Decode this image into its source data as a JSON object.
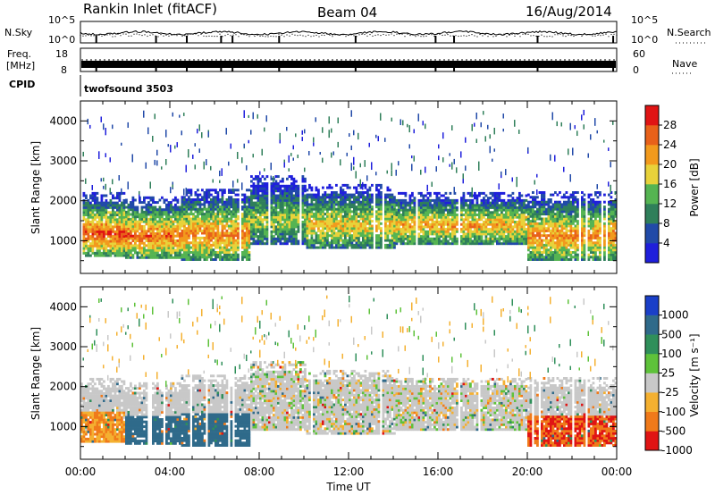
{
  "header": {
    "station": "Rankin Inlet (fitACF)",
    "beam": "Beam 04",
    "date": "16/Aug/2014"
  },
  "strips": {
    "nsky_label": "N.Sky",
    "nsearch_label": "N.Search",
    "nsky_ticks": [
      "10^5",
      "10^0"
    ],
    "nsearch_ticks": [
      "10^5",
      "10^0"
    ],
    "freq_label_top": "Freq.",
    "freq_label_bottom": "[MHz]",
    "freq_ticks": [
      "18",
      "8"
    ],
    "nave_label": "Nave",
    "nave_ticks": [
      "60",
      "0"
    ],
    "cpid_label": "CPID",
    "cpid_value": "twofsound 3503"
  },
  "chart_data": [
    {
      "type": "heatmap",
      "name": "power",
      "ylabel": "Slant Range [km]",
      "xlabel": "Time UT",
      "x_ticks": [
        "00:00",
        "04:00",
        "08:00",
        "12:00",
        "16:00",
        "20:00",
        "00:00"
      ],
      "xlim_hours": [
        0,
        24
      ],
      "y_ticks": [
        1000,
        2000,
        3000,
        4000
      ],
      "ylim": [
        180,
        4500
      ],
      "colorbar": {
        "label": "Power [dB]",
        "ticks": [
          4,
          8,
          12,
          16,
          20,
          24,
          28
        ],
        "range": [
          0,
          30
        ],
        "colors": [
          "#1f1fdc",
          "#214aa8",
          "#2f7f5a",
          "#55b452",
          "#e8d23a",
          "#f29a1d",
          "#e8611a",
          "#e01414"
        ]
      },
      "bands": [
        {
          "start_h": 0.0,
          "end_h": 2.0,
          "low_km": 600,
          "high_km": 2200,
          "core_db": 27
        },
        {
          "start_h": 2.0,
          "end_h": 4.5,
          "low_km": 550,
          "high_km": 2100,
          "core_db": 26
        },
        {
          "start_h": 4.5,
          "end_h": 7.5,
          "low_km": 500,
          "high_km": 2300,
          "core_db": 24
        },
        {
          "start_h": 7.5,
          "end_h": 10.0,
          "low_km": 900,
          "high_km": 2600,
          "core_db": 16
        },
        {
          "start_h": 10.0,
          "end_h": 14.0,
          "low_km": 800,
          "high_km": 2400,
          "core_db": 20
        },
        {
          "start_h": 14.0,
          "end_h": 20.0,
          "low_km": 900,
          "high_km": 2200,
          "core_db": 22
        },
        {
          "start_h": 20.0,
          "end_h": 24.0,
          "low_km": 500,
          "high_km": 2200,
          "core_db": 24
        }
      ]
    },
    {
      "type": "heatmap",
      "name": "velocity",
      "ylabel": "Slant Range [km]",
      "xlabel": "Time UT",
      "x_ticks": [
        "00:00",
        "04:00",
        "08:00",
        "12:00",
        "16:00",
        "20:00",
        "00:00"
      ],
      "xlim_hours": [
        0,
        24
      ],
      "y_ticks": [
        1000,
        2000,
        3000,
        4000
      ],
      "ylim": [
        180,
        4500
      ],
      "colorbar": {
        "label": "Velocity [m s⁻¹]",
        "ticks": [
          "1000",
          "500",
          "100",
          "25",
          "-25",
          "-100",
          "-500",
          "-1000"
        ],
        "colors": [
          "#1a3fc8",
          "#2f6a8a",
          "#2f8f5a",
          "#5ec23a",
          "#c8c8c8",
          "#f4b030",
          "#f07a1a",
          "#e01414"
        ]
      },
      "bands": [
        {
          "start_h": 0.0,
          "end_h": 2.0,
          "low_km": 600,
          "high_km": 2200,
          "velocity": -100
        },
        {
          "start_h": 2.0,
          "end_h": 4.5,
          "low_km": 550,
          "high_km": 2100,
          "velocity": 500
        },
        {
          "start_h": 4.5,
          "end_h": 7.5,
          "low_km": 500,
          "high_km": 2300,
          "velocity": 500
        },
        {
          "start_h": 7.5,
          "end_h": 10.0,
          "low_km": 900,
          "high_km": 2600,
          "velocity": 0
        },
        {
          "start_h": 10.0,
          "end_h": 14.0,
          "low_km": 800,
          "high_km": 2400,
          "velocity": 0
        },
        {
          "start_h": 14.0,
          "end_h": 20.0,
          "low_km": 900,
          "high_km": 2200,
          "velocity": 0
        },
        {
          "start_h": 20.0,
          "end_h": 24.0,
          "low_km": 500,
          "high_km": 2200,
          "velocity": -500
        }
      ]
    }
  ]
}
